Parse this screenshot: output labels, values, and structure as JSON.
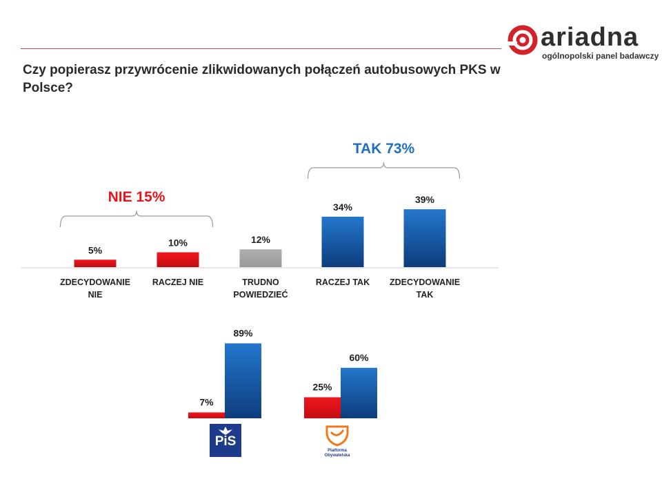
{
  "header": {
    "logo_word": "ariadna",
    "logo_tagline": "ogólnopolski panel badawczy",
    "question": "Czy popierasz przywrócenie zlikwidowanych połączeń autobusowych PKS w Polsce?"
  },
  "colors": {
    "nie": "#e8141b",
    "neutral": "#a6a6a6",
    "tak": "#1f6fbf",
    "tak_dark": "#0e3f80",
    "nie_summary_text": "#e8141b",
    "tak_summary_text": "#1f6fbf"
  },
  "chart_data": [
    {
      "type": "bar",
      "categories": [
        "ZDECYDOWANIE NIE",
        "RACZEJ NIE",
        "TRUDNO POWIEDZIEĆ",
        "RACZEJ TAK",
        "ZDECYDOWANIE TAK"
      ],
      "values": [
        5,
        10,
        12,
        34,
        39
      ],
      "value_labels": [
        "5%",
        "10%",
        "12%",
        "34%",
        "39%"
      ],
      "bar_colors": [
        "nie",
        "nie",
        "neutral",
        "tak",
        "tak"
      ],
      "unit": "%",
      "groups": [
        {
          "label": "NIE 15%",
          "color": "nie",
          "from": 0,
          "to": 1
        },
        {
          "label": "TAK 73%",
          "color": "tak",
          "from": 3,
          "to": 4
        }
      ],
      "ylim": [
        0,
        100
      ],
      "grid": false,
      "legend": "none"
    },
    {
      "type": "bar",
      "categories": [
        "PiS",
        "Platforma Obywatelska"
      ],
      "series": [
        {
          "values": [
            7,
            25
          ],
          "value_labels": [
            "7%",
            "25%"
          ],
          "color": "nie"
        },
        {
          "values": [
            89,
            60
          ],
          "value_labels": [
            "89%",
            "60%"
          ],
          "color": "tak"
        }
      ],
      "unit": "%",
      "ylim": [
        0,
        100
      ],
      "grid": false,
      "legend": "none"
    }
  ],
  "party_logos": {
    "pis_text": "PiS",
    "po_text": "Platforma Obywatelska"
  }
}
